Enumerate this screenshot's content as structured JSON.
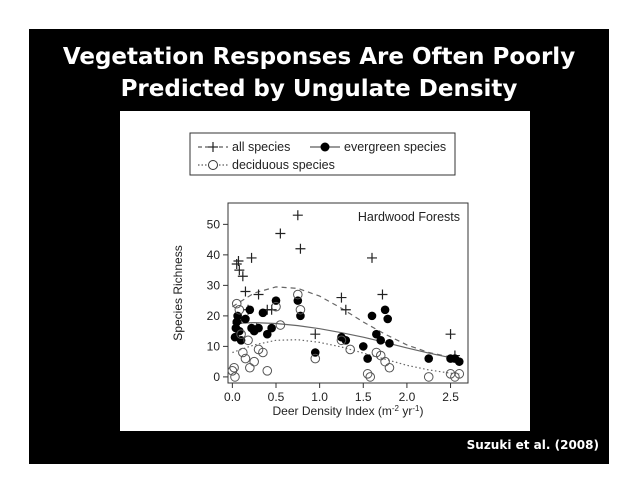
{
  "slide": {
    "title_line1": "Vegetation Responses Are Often Poorly",
    "title_line2": "Predicted by Ungulate Density",
    "citation": "Suzuki et al. (2008)",
    "background": "#000000",
    "text_color": "#ffffff"
  },
  "chart_data": {
    "type": "scatter",
    "title": "Hardwood Forests",
    "xlabel": "Deer Density Index (m",
    "xlabel_sup1": "-2",
    "xlabel_mid": " yr",
    "xlabel_sup2": "-1",
    "xlabel_end": ")",
    "ylabel": "Species Richness",
    "xlim": [
      -0.05,
      2.7
    ],
    "ylim": [
      -2,
      57
    ],
    "xticks": [
      0.0,
      0.5,
      1.0,
      1.5,
      2.0,
      2.5
    ],
    "xtick_labels": [
      "0.0",
      "0.5",
      "1.0",
      "1.5",
      "2.0",
      "2.5"
    ],
    "yticks": [
      0,
      10,
      20,
      30,
      40,
      50
    ],
    "ytick_labels": [
      "0",
      "10",
      "20",
      "30",
      "40",
      "50"
    ],
    "grid": false,
    "legend_position": "top, outside plot area",
    "legend": [
      {
        "label": "all species",
        "marker": "plus",
        "line": "dashed"
      },
      {
        "label": "evergreen species",
        "marker": "filled-circle",
        "line": "solid"
      },
      {
        "label": "deciduous species",
        "marker": "open-circle",
        "line": "dotted"
      }
    ],
    "series": [
      {
        "name": "all species",
        "marker": "plus",
        "points": [
          [
            0.05,
            37
          ],
          [
            0.07,
            38
          ],
          [
            0.08,
            35
          ],
          [
            0.12,
            33
          ],
          [
            0.15,
            28
          ],
          [
            0.18,
            22
          ],
          [
            0.22,
            39
          ],
          [
            0.3,
            27
          ],
          [
            0.4,
            22
          ],
          [
            0.45,
            22
          ],
          [
            0.55,
            47
          ],
          [
            0.75,
            53
          ],
          [
            0.78,
            42
          ],
          [
            0.95,
            14
          ],
          [
            1.25,
            26
          ],
          [
            1.3,
            22
          ],
          [
            1.6,
            39
          ],
          [
            1.72,
            27
          ],
          [
            2.5,
            14
          ],
          [
            2.55,
            7
          ],
          [
            0.1,
            19
          ],
          [
            0.28,
            16
          ]
        ]
      },
      {
        "name": "evergreen species",
        "marker": "filled-circle",
        "points": [
          [
            0.03,
            13
          ],
          [
            0.04,
            16
          ],
          [
            0.05,
            18
          ],
          [
            0.06,
            20
          ],
          [
            0.08,
            15
          ],
          [
            0.1,
            12
          ],
          [
            0.15,
            19
          ],
          [
            0.2,
            22
          ],
          [
            0.22,
            16
          ],
          [
            0.25,
            15
          ],
          [
            0.3,
            16
          ],
          [
            0.35,
            21
          ],
          [
            0.4,
            14
          ],
          [
            0.45,
            16
          ],
          [
            0.5,
            25
          ],
          [
            0.75,
            25
          ],
          [
            0.78,
            20
          ],
          [
            0.95,
            8
          ],
          [
            1.25,
            13
          ],
          [
            1.3,
            12
          ],
          [
            1.5,
            10
          ],
          [
            1.55,
            6
          ],
          [
            1.6,
            20
          ],
          [
            1.65,
            14
          ],
          [
            1.7,
            12
          ],
          [
            1.75,
            22
          ],
          [
            1.78,
            19
          ],
          [
            1.8,
            11
          ],
          [
            2.25,
            6
          ],
          [
            2.5,
            6
          ],
          [
            2.55,
            6
          ],
          [
            2.6,
            5
          ]
        ]
      },
      {
        "name": "deciduous species",
        "marker": "open-circle",
        "points": [
          [
            0.0,
            2
          ],
          [
            0.02,
            3
          ],
          [
            0.03,
            0
          ],
          [
            0.05,
            24
          ],
          [
            0.08,
            22
          ],
          [
            0.1,
            14
          ],
          [
            0.12,
            8
          ],
          [
            0.15,
            6
          ],
          [
            0.18,
            12
          ],
          [
            0.2,
            3
          ],
          [
            0.25,
            5
          ],
          [
            0.3,
            9
          ],
          [
            0.35,
            8
          ],
          [
            0.4,
            2
          ],
          [
            0.5,
            23
          ],
          [
            0.55,
            17
          ],
          [
            0.75,
            27
          ],
          [
            0.78,
            22
          ],
          [
            0.95,
            6
          ],
          [
            1.25,
            12
          ],
          [
            1.35,
            9
          ],
          [
            1.55,
            1
          ],
          [
            1.58,
            0
          ],
          [
            1.65,
            8
          ],
          [
            1.7,
            7
          ],
          [
            1.75,
            5
          ],
          [
            1.8,
            3
          ],
          [
            2.25,
            0
          ],
          [
            2.5,
            1
          ],
          [
            2.55,
            0
          ],
          [
            2.6,
            1
          ]
        ]
      }
    ],
    "fitted_curves": [
      {
        "name": "all species",
        "style": "dashed",
        "x": [
          0.0,
          0.25,
          0.5,
          0.75,
          1.0,
          1.25,
          1.5,
          1.75,
          2.0,
          2.25,
          2.5,
          2.6
        ],
        "y": [
          23,
          27.5,
          29.5,
          29,
          26.5,
          22.5,
          18,
          14,
          10.5,
          8,
          6.5,
          6
        ]
      },
      {
        "name": "evergreen species",
        "style": "solid",
        "x": [
          0.0,
          0.25,
          0.5,
          0.75,
          1.0,
          1.25,
          1.5,
          1.75,
          2.0,
          2.25,
          2.5,
          2.6
        ],
        "y": [
          17.5,
          17.8,
          17.5,
          16.8,
          15.8,
          14.5,
          13,
          11.3,
          9.5,
          7.8,
          6.3,
          5.8
        ]
      },
      {
        "name": "deciduous species",
        "style": "dotted",
        "x": [
          0.0,
          0.25,
          0.5,
          0.75,
          1.0,
          1.25,
          1.5,
          1.75,
          2.0,
          2.25,
          2.5,
          2.6
        ],
        "y": [
          8,
          10.5,
          12,
          12.2,
          11.3,
          9.8,
          7.8,
          5.8,
          3.8,
          2.3,
          1.2,
          1
        ]
      }
    ]
  }
}
